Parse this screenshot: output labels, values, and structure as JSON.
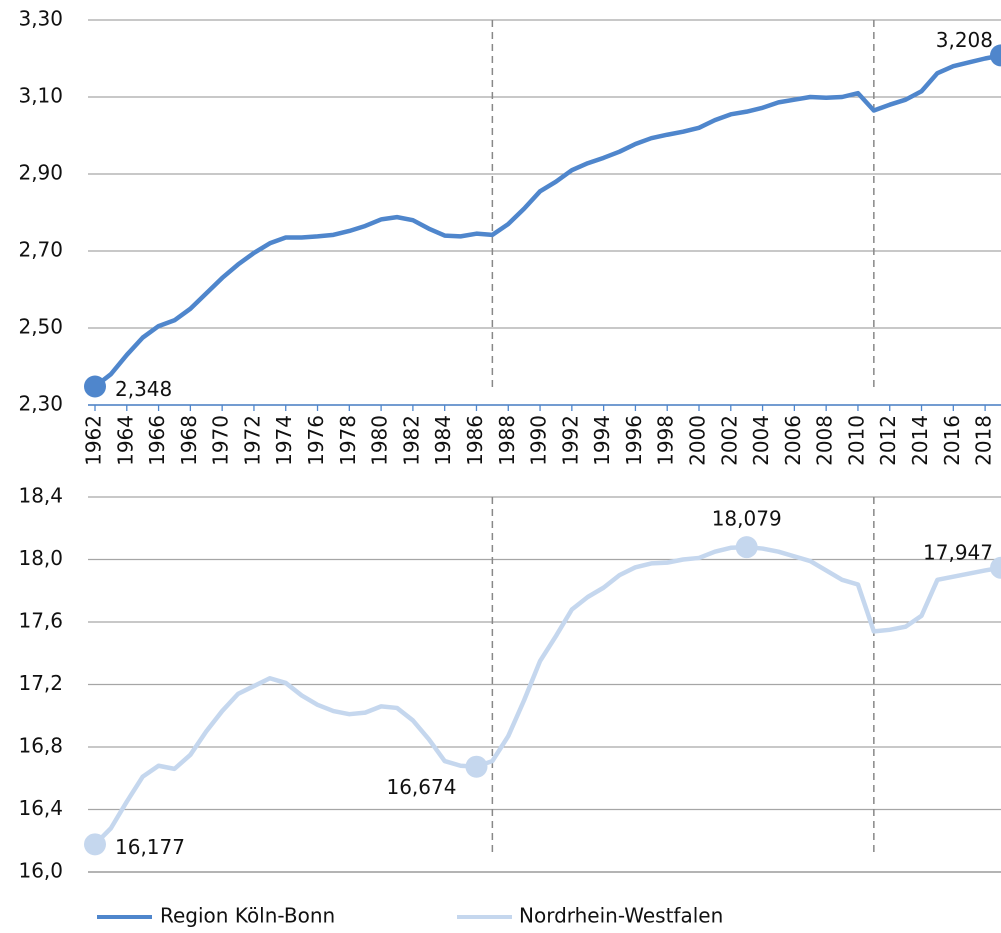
{
  "chart_data": [
    {
      "type": "line",
      "x": [
        1962,
        1963,
        1964,
        1965,
        1966,
        1967,
        1968,
        1969,
        1970,
        1971,
        1972,
        1973,
        1974,
        1975,
        1976,
        1977,
        1978,
        1979,
        1980,
        1981,
        1982,
        1983,
        1984,
        1985,
        1986,
        1987,
        1988,
        1989,
        1990,
        1991,
        1992,
        1993,
        1994,
        1995,
        1996,
        1997,
        1998,
        1999,
        2000,
        2001,
        2002,
        2003,
        2004,
        2005,
        2006,
        2007,
        2008,
        2009,
        2010,
        2011,
        2012,
        2013,
        2014,
        2015,
        2016,
        2017,
        2018,
        2019
      ],
      "series": [
        {
          "name": "Region Köln-Bonn",
          "color": "#4f86cc",
          "values": [
            2.348,
            2.38,
            2.43,
            2.475,
            2.505,
            2.52,
            2.55,
            2.59,
            2.63,
            2.665,
            2.695,
            2.72,
            2.735,
            2.735,
            2.738,
            2.742,
            2.752,
            2.765,
            2.782,
            2.788,
            2.78,
            2.758,
            2.74,
            2.738,
            2.745,
            2.742,
            2.77,
            2.81,
            2.855,
            2.88,
            2.91,
            2.928,
            2.942,
            2.958,
            2.978,
            2.993,
            3.002,
            3.01,
            3.02,
            3.04,
            3.055,
            3.062,
            3.072,
            3.086,
            3.093,
            3.1,
            3.098,
            3.1,
            3.11,
            3.065,
            3.08,
            3.093,
            3.115,
            3.162,
            3.18,
            3.19,
            3.2,
            3.208
          ],
          "value_labels": [
            "2,348",
            null,
            null,
            null,
            null,
            null,
            null,
            null,
            null,
            null,
            null,
            null,
            null,
            null,
            null,
            null,
            null,
            null,
            null,
            null,
            null,
            null,
            null,
            null,
            null,
            null,
            null,
            null,
            null,
            null,
            null,
            null,
            null,
            null,
            null,
            null,
            null,
            null,
            null,
            null,
            null,
            null,
            null,
            null,
            null,
            null,
            null,
            null,
            null,
            null,
            null,
            null,
            null,
            null,
            null,
            null,
            null,
            "3,208"
          ]
        }
      ],
      "xlim": [
        1962,
        2019
      ],
      "xticks": [
        1962,
        1964,
        1966,
        1968,
        1970,
        1972,
        1974,
        1976,
        1978,
        1980,
        1982,
        1984,
        1986,
        1988,
        1990,
        1992,
        1994,
        1996,
        1998,
        2000,
        2002,
        2004,
        2006,
        2008,
        2010,
        2012,
        2014,
        2016,
        2018
      ],
      "ylim": [
        2.3,
        3.3
      ],
      "yticks": [
        {
          "value": 2.3,
          "label": "2,30"
        },
        {
          "value": 2.5,
          "label": "2,50"
        },
        {
          "value": 2.7,
          "label": "2,70"
        },
        {
          "value": 2.9,
          "label": "2,90"
        },
        {
          "value": 3.1,
          "label": "3,10"
        },
        {
          "value": 3.3,
          "label": "3,30"
        }
      ],
      "reference_x": [
        1987,
        2011
      ],
      "grid": true
    },
    {
      "type": "line",
      "x": [
        1962,
        1963,
        1964,
        1965,
        1966,
        1967,
        1968,
        1969,
        1970,
        1971,
        1972,
        1973,
        1974,
        1975,
        1976,
        1977,
        1978,
        1979,
        1980,
        1981,
        1982,
        1983,
        1984,
        1985,
        1986,
        1987,
        1988,
        1989,
        1990,
        1991,
        1992,
        1993,
        1994,
        1995,
        1996,
        1997,
        1998,
        1999,
        2000,
        2001,
        2002,
        2003,
        2004,
        2005,
        2006,
        2007,
        2008,
        2009,
        2010,
        2011,
        2012,
        2013,
        2014,
        2015,
        2016,
        2017,
        2018,
        2019
      ],
      "series": [
        {
          "name": "Nordrhein-Westfalen",
          "color": "#c5d7ee",
          "values": [
            16.177,
            16.28,
            16.45,
            16.61,
            16.68,
            16.66,
            16.75,
            16.9,
            17.03,
            17.14,
            17.19,
            17.24,
            17.21,
            17.13,
            17.07,
            17.03,
            17.01,
            17.02,
            17.06,
            17.05,
            16.97,
            16.85,
            16.71,
            16.68,
            16.674,
            16.71,
            16.87,
            17.1,
            17.35,
            17.51,
            17.68,
            17.76,
            17.82,
            17.9,
            17.95,
            17.975,
            17.98,
            18.0,
            18.01,
            18.05,
            18.075,
            18.079,
            18.07,
            18.05,
            18.02,
            17.99,
            17.93,
            17.87,
            17.84,
            17.54,
            17.55,
            17.57,
            17.64,
            17.87,
            17.89,
            17.91,
            17.93,
            17.947
          ],
          "value_labels": [
            "16,177",
            null,
            null,
            null,
            null,
            null,
            null,
            null,
            null,
            null,
            null,
            null,
            null,
            null,
            null,
            null,
            null,
            null,
            null,
            null,
            null,
            null,
            null,
            null,
            "16,674",
            null,
            null,
            null,
            null,
            null,
            null,
            null,
            null,
            null,
            null,
            null,
            null,
            null,
            null,
            null,
            null,
            "18,079",
            null,
            null,
            null,
            null,
            null,
            null,
            null,
            null,
            null,
            null,
            null,
            null,
            null,
            null,
            null,
            "17,947"
          ]
        }
      ],
      "xlim": [
        1962,
        2019
      ],
      "ylim": [
        16.0,
        18.4
      ],
      "yticks": [
        {
          "value": 16.0,
          "label": "16,0"
        },
        {
          "value": 16.4,
          "label": "16,4"
        },
        {
          "value": 16.8,
          "label": "16,8"
        },
        {
          "value": 17.2,
          "label": "17,2"
        },
        {
          "value": 17.6,
          "label": "17,6"
        },
        {
          "value": 18.0,
          "label": "18,0"
        },
        {
          "value": 18.4,
          "label": "18,4"
        }
      ],
      "reference_x": [
        1987,
        2011
      ],
      "grid": true
    }
  ]
}
